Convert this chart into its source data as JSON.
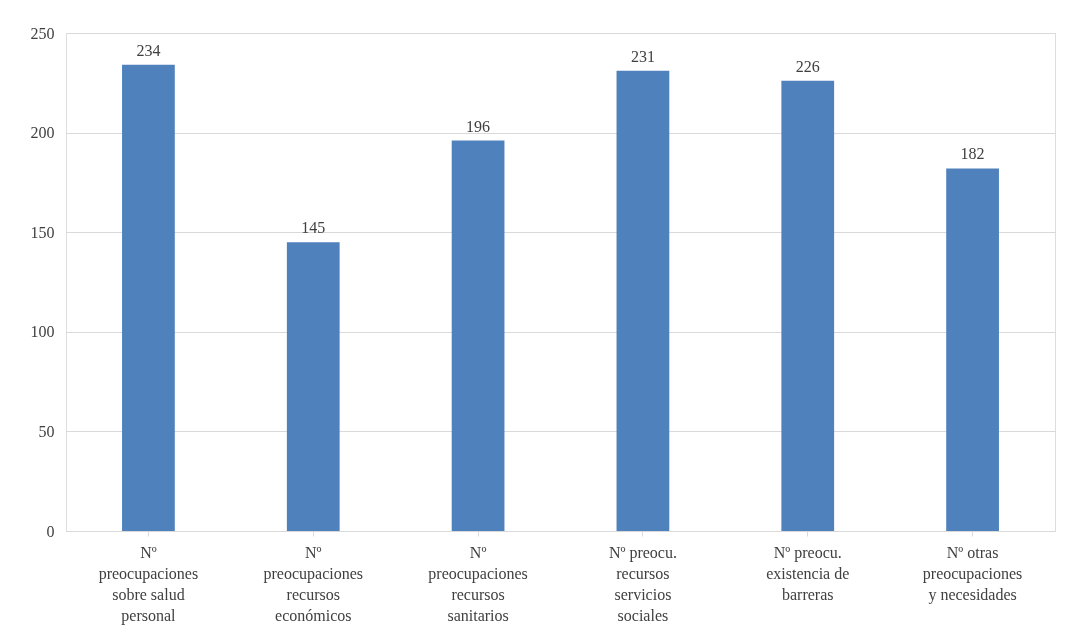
{
  "chart_data": {
    "type": "bar",
    "categories": [
      "Nº preocupaciones sobre salud personal",
      "Nº preocupaciones recursos económicos",
      "Nº preocupaciones recursos sanitarios",
      "Nº preocu. recursos servicios sociales",
      "Nº preocu. existencia de barreras",
      "Nº otras preocupaciones y necesidades"
    ],
    "values": [
      234,
      145,
      196,
      231,
      226,
      182
    ],
    "color": "#4f81bd",
    "ylim": [
      0,
      250
    ],
    "yticks": [
      0,
      50,
      100,
      150,
      200,
      250
    ],
    "grid": "y",
    "data_labels": true
  }
}
